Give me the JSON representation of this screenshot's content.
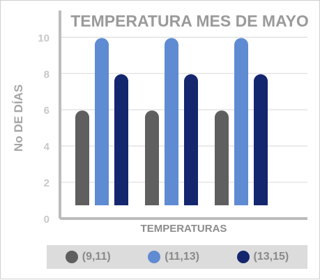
{
  "chart_data": {
    "type": "bar",
    "title": "TEMPERATURA MES DE MAYO",
    "xlabel": "TEMPERATURAS",
    "ylabel": "No DE DÍAS",
    "ylim": [
      0,
      10
    ],
    "yticks": [
      "0",
      "2",
      "4",
      "6",
      "8",
      "10"
    ],
    "categories": [
      "",
      "",
      ""
    ],
    "series": [
      {
        "name": "(9,11)",
        "values": [
          6,
          6,
          6
        ],
        "color": "#5f5f5f"
      },
      {
        "name": "(11,13)",
        "values": [
          10,
          10,
          10
        ],
        "color": "#5f8bd2"
      },
      {
        "name": "(13,15)",
        "values": [
          8,
          8,
          8
        ],
        "color": "#14266e"
      }
    ],
    "grid": true,
    "legend_position": "bottom"
  }
}
